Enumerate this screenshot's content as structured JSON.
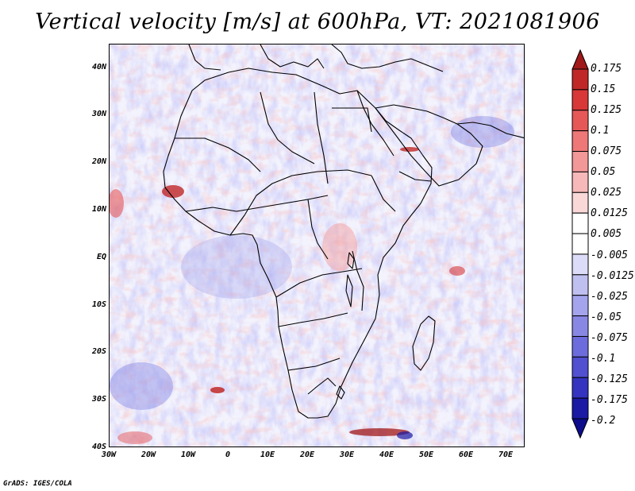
{
  "title": "Vertical velocity [m/s] at 600hPa, VT: 2021081906",
  "credit": "GrADS: IGES/COLA",
  "map": {
    "variable": "Vertical velocity",
    "units": "m/s",
    "level": "600hPa",
    "valid_time": "2021081906",
    "lat_labels": [
      "40N",
      "30N",
      "20N",
      "10N",
      "EQ",
      "10S",
      "20S",
      "30S",
      "40S"
    ],
    "lon_labels": [
      "30W",
      "20W",
      "10W",
      "0",
      "10E",
      "20E",
      "30E",
      "40E",
      "50E",
      "60E",
      "70E"
    ]
  },
  "colorbar": {
    "labels": [
      "0.175",
      "0.15",
      "0.125",
      "0.1",
      "0.075",
      "0.05",
      "0.025",
      "0.0125",
      "0.005",
      "-0.005",
      "-0.0125",
      "-0.025",
      "-0.05",
      "-0.075",
      "-0.1",
      "-0.125",
      "-0.175",
      "-0.2"
    ],
    "colors": [
      "#a01818",
      "#c02828",
      "#d83838",
      "#e65858",
      "#ee7878",
      "#f29898",
      "#f6b8b8",
      "#fad8d8",
      "#ffffff",
      "#ffffff",
      "#dcdcf8",
      "#c0c0f0",
      "#a4a4ec",
      "#8888e4",
      "#6c6cdc",
      "#5050d0",
      "#3434c0",
      "#1a1aa4",
      "#0c0c8c"
    ]
  }
}
